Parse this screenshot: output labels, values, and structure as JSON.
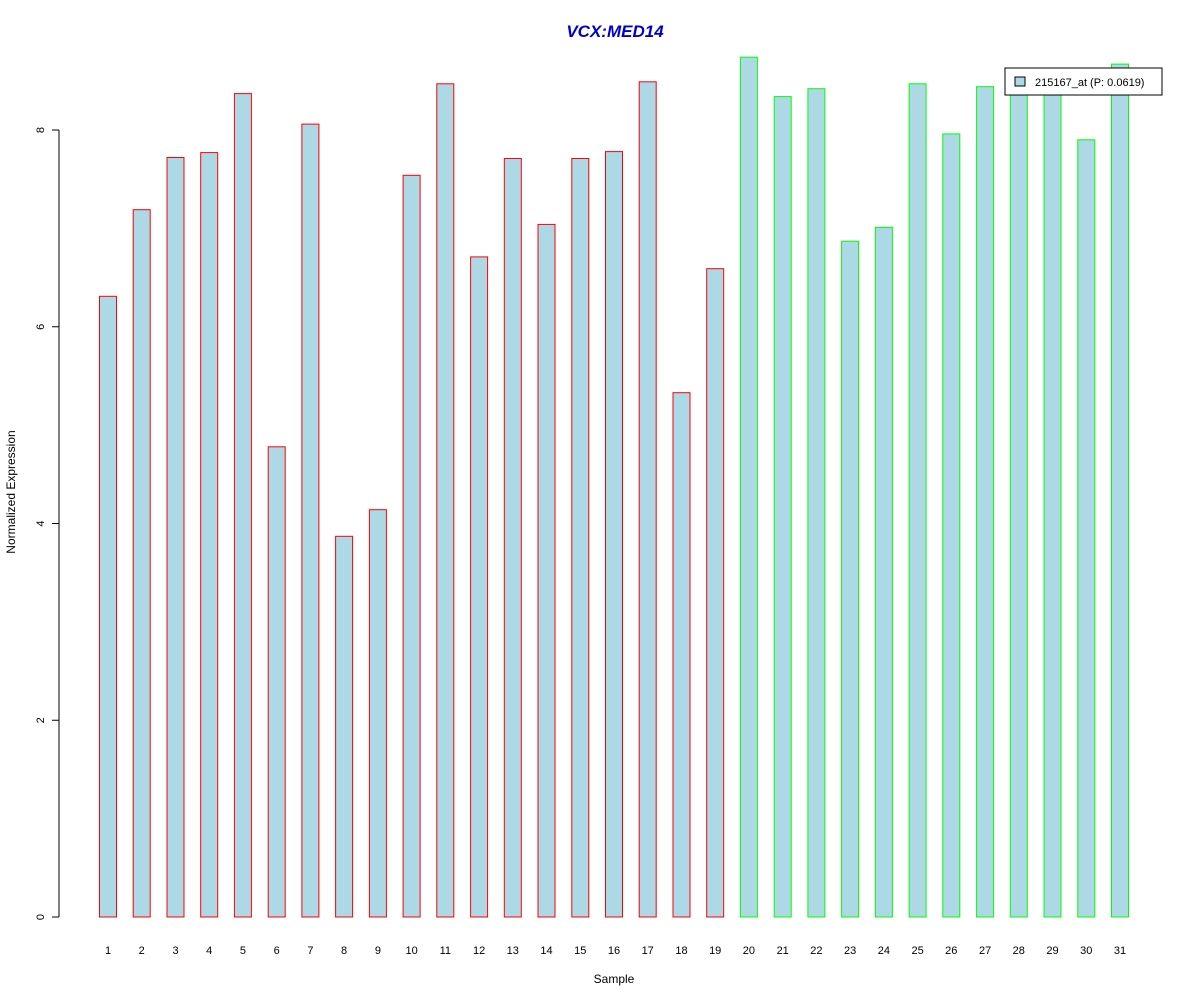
{
  "chart_data": {
    "type": "bar",
    "title": "VCX:MED14",
    "xlabel": "Sample",
    "ylabel": "Normalized Expression",
    "ylim": [
      0,
      8
    ],
    "yticks": [
      "0",
      "2",
      "4",
      "6",
      "8"
    ],
    "grid": false,
    "legend_position": "top-right",
    "categories": [
      "1",
      "2",
      "3",
      "4",
      "5",
      "6",
      "7",
      "8",
      "9",
      "10",
      "11",
      "12",
      "13",
      "14",
      "15",
      "16",
      "17",
      "18",
      "19",
      "20",
      "21",
      "22",
      "23",
      "24",
      "25",
      "26",
      "27",
      "28",
      "29",
      "30",
      "31"
    ],
    "series": [
      {
        "name": "215167_at (P: 0.0619)",
        "values": [
          6.31,
          7.19,
          7.72,
          7.77,
          8.37,
          4.78,
          8.06,
          3.87,
          4.14,
          7.54,
          8.47,
          6.71,
          7.71,
          7.04,
          7.71,
          7.78,
          8.49,
          5.33,
          6.59,
          8.74,
          8.34,
          8.42,
          6.87,
          7.01,
          8.47,
          7.96,
          8.44,
          8.37,
          8.44,
          7.9,
          8.67
        ]
      }
    ],
    "colors": {
      "bar_fill": "#ADD8E6",
      "group1_border": "#FF0000",
      "group2_border": "#00FF00",
      "title": "#0000CC",
      "legend_swatch": "#ADD8E6"
    },
    "group_split_after_index": 18
  }
}
